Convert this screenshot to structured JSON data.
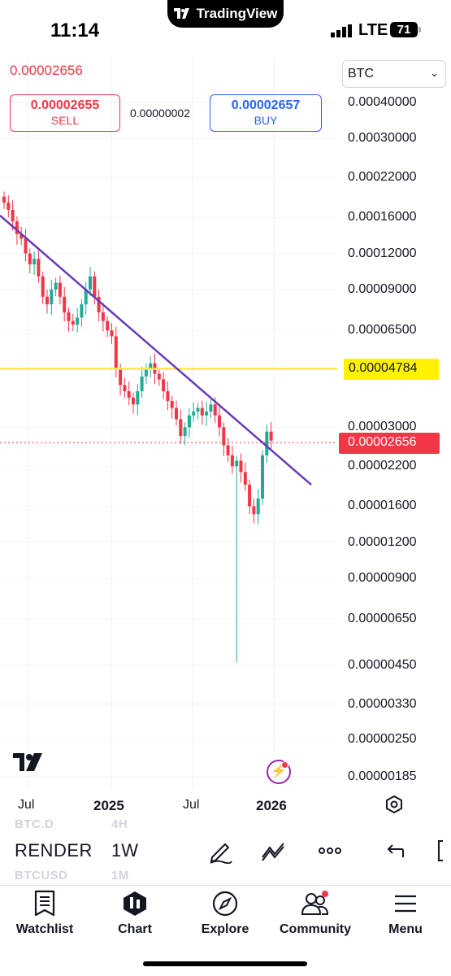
{
  "status_bar": {
    "time": "11:14",
    "island_app": "TradingView",
    "network": "LTE",
    "battery": "71"
  },
  "trade": {
    "last_price": "0.00002656",
    "sell_price": "0.00002655",
    "sell_label": "SELL",
    "spread": "0.00000002",
    "buy_price": "0.00002657",
    "buy_label": "BUY",
    "currency": "BTC"
  },
  "axis": {
    "price_labels": [
      "0.00040000",
      "0.00030000",
      "0.00022000",
      "0.00016000",
      "0.00012000",
      "0.00009000",
      "0.00006500",
      "0.00003000",
      "0.00002200",
      "0.00001600",
      "0.00001200",
      "0.00000900",
      "0.00000650",
      "0.00000450",
      "0.00000330",
      "0.00000250",
      "0.00000185"
    ],
    "horizontal_line_price": "0.00004784",
    "current_price_tag": "0.00002656",
    "time_labels": [
      "Jul",
      "2025",
      "Jul",
      "2026"
    ]
  },
  "colors": {
    "up": "#22ab94",
    "down": "#f23645",
    "trendline": "#673ab7",
    "horizontal_line": "#ffeb3b",
    "accent_blue": "#2962ff"
  },
  "toolbar": {
    "symbol": "RENDER",
    "interval": "1W",
    "ghost_symbol_above": "BTC.D",
    "ghost_interval_above": "4H",
    "ghost_symbol_below": "BTCUSD",
    "ghost_interval_below": "1M",
    "icons": [
      "draw-pen-icon",
      "indicators-icon",
      "more-icon",
      "undo-icon"
    ]
  },
  "nav": {
    "items": [
      {
        "label": "Watchlist",
        "icon": "watchlist-icon"
      },
      {
        "label": "Chart",
        "icon": "chart-icon"
      },
      {
        "label": "Explore",
        "icon": "compass-icon"
      },
      {
        "label": "Community",
        "icon": "community-icon"
      },
      {
        "label": "Menu",
        "icon": "menu-icon"
      }
    ]
  },
  "chart_data": {
    "type": "candlestick",
    "log_scale": true,
    "series_note": "weekly candles, approximate closes in BTC",
    "closes": [
      0.00018,
      0.00017,
      0.000155,
      0.00014,
      0.000135,
      0.00012,
      0.00011,
      0.000115,
      0.0001,
      8.5e-05,
      8e-05,
      9e-05,
      9.5e-05,
      8.5e-05,
      7.5e-05,
      7e-05,
      6.8e-05,
      7.2e-05,
      8e-05,
      9e-05,
      0.0001,
      8.5e-05,
      7.5e-05,
      7e-05,
      6.5e-05,
      6.2e-05,
      4.8e-05,
      4.2e-05,
      4e-05,
      3.8e-05,
      3.6e-05,
      4e-05,
      4.5e-05,
      4.8e-05,
      5e-05,
      4.6e-05,
      4.4e-05,
      4e-05,
      3.7e-05,
      3.5e-05,
      3.2e-05,
      2.8e-05,
      3e-05,
      3.3e-05,
      3.4e-05,
      3.5e-05,
      3.3e-05,
      3.4e-05,
      3.6e-05,
      3.3e-05,
      3e-05,
      2.6e-05,
      2.4e-05,
      2.2e-05,
      2.3e-05,
      2.1e-05,
      1.9e-05,
      1.6e-05,
      1.5e-05,
      1.7e-05,
      2.4e-05,
      2.9e-05,
      2.7e-05
    ]
  }
}
